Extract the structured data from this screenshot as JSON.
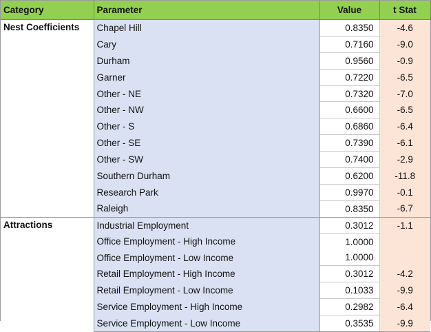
{
  "headers": {
    "category": "Category",
    "parameter": "Parameter",
    "value": "Value",
    "tstat": "t Stat"
  },
  "sections": [
    {
      "category": "Nest Coefficients",
      "rows": [
        {
          "parameter": "Chapel Hill",
          "value": "0.8350",
          "tstat": "-4.6"
        },
        {
          "parameter": "Cary",
          "value": "0.7160",
          "tstat": "-9.0"
        },
        {
          "parameter": "Durham",
          "value": "0.9560",
          "tstat": "-0.9"
        },
        {
          "parameter": "Garner",
          "value": "0.7220",
          "tstat": "-6.5"
        },
        {
          "parameter": "Other - NE",
          "value": "0.7320",
          "tstat": "-7.0"
        },
        {
          "parameter": "Other - NW",
          "value": "0.6600",
          "tstat": "-6.5"
        },
        {
          "parameter": "Other - S",
          "value": "0.6860",
          "tstat": "-6.4"
        },
        {
          "parameter": "Other - SE",
          "value": "0.7390",
          "tstat": "-6.1"
        },
        {
          "parameter": "Other - SW",
          "value": "0.7400",
          "tstat": "-2.9"
        },
        {
          "parameter": "Southern Durham",
          "value": "0.6200",
          "tstat": "-11.8"
        },
        {
          "parameter": "Research Park",
          "value": "0.9970",
          "tstat": "-0.1"
        },
        {
          "parameter": "Raleigh",
          "value": "0.8350",
          "tstat": "-6.7"
        }
      ]
    },
    {
      "category": "Attractions",
      "rows": [
        {
          "parameter": "Industrial Employment",
          "value": "0.3012",
          "tstat": "-1.1"
        },
        {
          "parameter": "Office Employment - High Income",
          "value": "1.0000",
          "tstat": ""
        },
        {
          "parameter": "Office Employment - Low Income",
          "value": "1.0000",
          "tstat": ""
        },
        {
          "parameter": "Retail Employment - High Income",
          "value": "0.3012",
          "tstat": "-4.2"
        },
        {
          "parameter": "Retail Employment - Low Income",
          "value": "0.1033",
          "tstat": "-9.9"
        },
        {
          "parameter": "Service  Employment - High Income",
          "value": "0.2982",
          "tstat": "-6.4"
        },
        {
          "parameter": "Service  Employment - Low Income",
          "value": "0.3535",
          "tstat": "-9.9"
        }
      ]
    }
  ]
}
